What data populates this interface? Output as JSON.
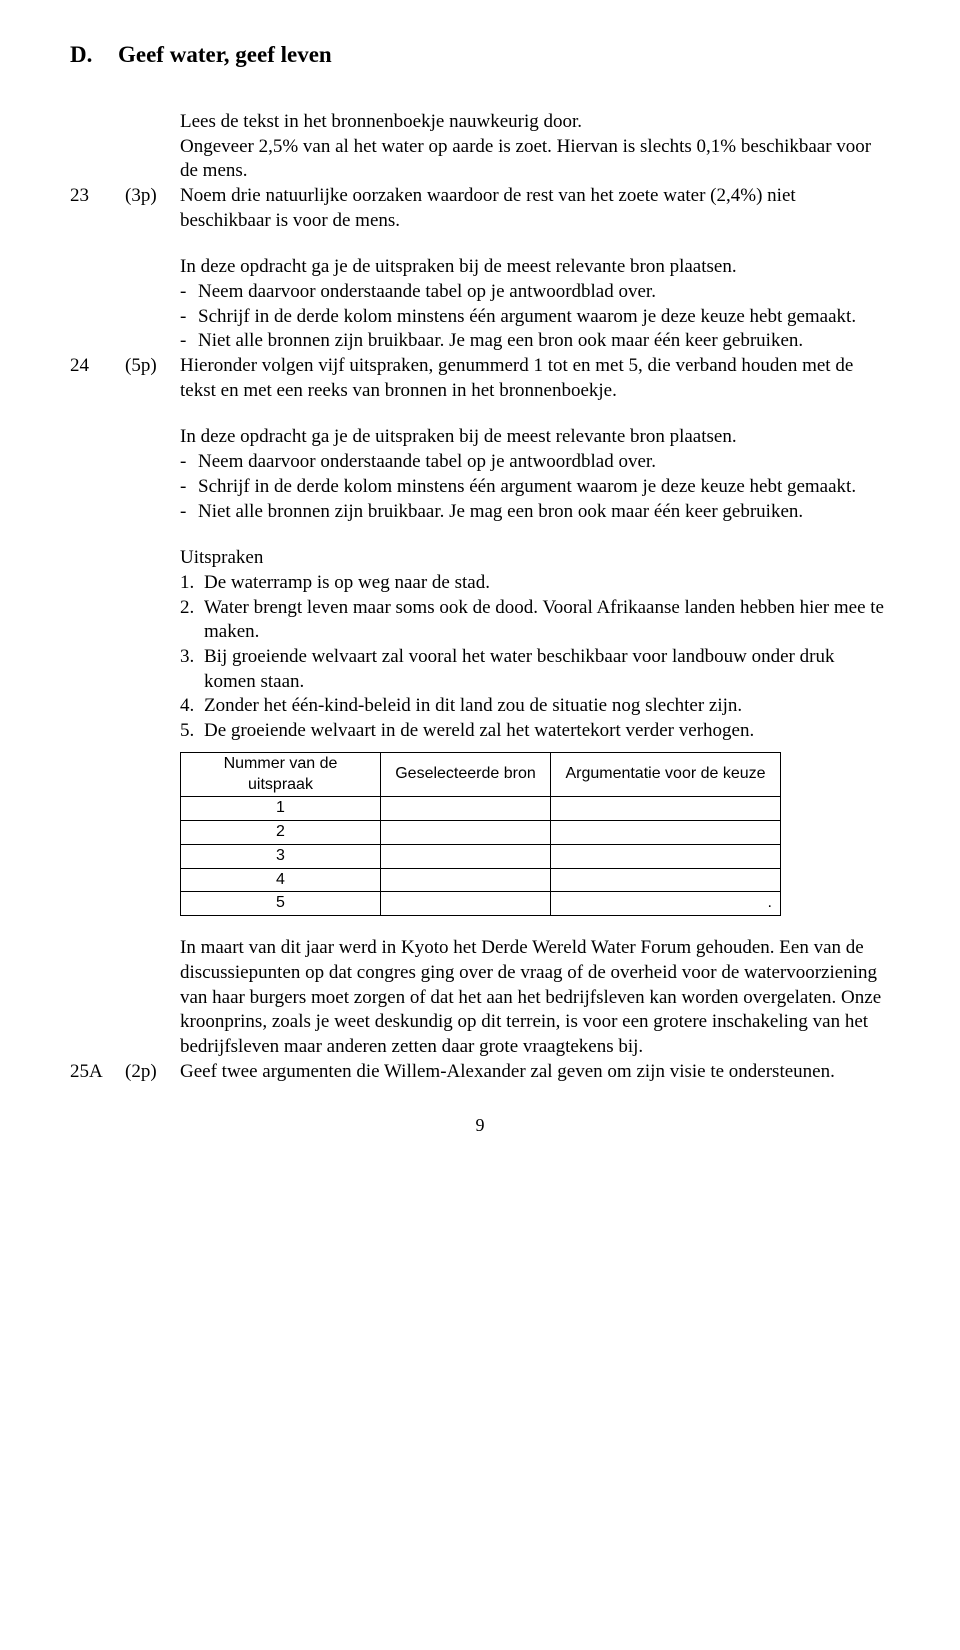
{
  "section": {
    "letter": "D.",
    "title": "Geef water, geef leven"
  },
  "intro": {
    "line1": "Lees de tekst in het bronnenboekje nauwkeurig door.",
    "line2": "Ongeveer 2,5% van al het water op aarde is zoet. Hiervan is slechts 0,1% beschikbaar voor de mens."
  },
  "q23": {
    "num": "23",
    "pts": "(3p)",
    "text": "Noem drie natuurlijke oorzaken waardoor de rest van het zoete water (2,4%) niet beschikbaar is voor de mens.",
    "instr": "In deze opdracht ga je de uitspraken bij de meest relevante bron plaatsen.",
    "b1": "Neem daarvoor onderstaande tabel op je antwoordblad over.",
    "b2": "Schrijf in de derde kolom minstens één argument waarom je deze keuze hebt gemaakt.",
    "b3": "Niet alle bronnen zijn bruikbaar. Je mag een bron ook maar één keer gebruiken."
  },
  "q24": {
    "num": "24",
    "pts": "(5p)",
    "text": "Hieronder volgen vijf uitspraken, genummerd 1 tot en met 5, die verband houden met de tekst en met een reeks van bronnen in het bronnenboekje.",
    "instr": "In deze opdracht ga je de uitspraken bij de meest relevante bron plaatsen.",
    "b1": "Neem daarvoor onderstaande tabel op je antwoordblad over.",
    "b2": "Schrijf in de derde kolom minstens één argument waarom je deze keuze hebt gemaakt.",
    "b3": "Niet alle bronnen zijn bruikbaar. Je mag een bron ook maar één keer gebruiken.",
    "uitspraken_label": "Uitspraken",
    "u1": "De waterramp is op weg naar de stad.",
    "u2": "Water brengt leven maar soms ook de dood. Vooral Afrikaanse landen hebben hier mee te maken.",
    "u3": "Bij groeiende welvaart zal vooral het water beschikbaar voor landbouw onder druk komen staan.",
    "u4": "Zonder het één-kind-beleid in dit land zou de situatie nog slechter zijn.",
    "u5": "De groeiende welvaart in de wereld zal het watertekort verder verhogen."
  },
  "table": {
    "h1": "Nummer van de uitspraak",
    "h2": "Geselecteerde bron",
    "h3": "Argumentatie voor de keuze",
    "r1": "1",
    "r2": "2",
    "r3": "3",
    "r4": "4",
    "r5": "5",
    "dot": "."
  },
  "q25": {
    "para": "In maart van dit jaar werd in Kyoto het Derde Wereld Water Forum gehouden. Een van de discussiepunten op dat congres ging over de vraag of de overheid voor de watervoorziening van haar burgers moet zorgen of dat het aan het bedrijfsleven kan worden overgelaten. Onze kroonprins, zoals je weet deskundig op dit terrein, is voor een grotere inschakeling van het bedrijfsleven maar anderen zetten daar grote vraagtekens bij.",
    "num": "25A",
    "pts": "(2p)",
    "text": "Geef twee argumenten die Willem-Alexander zal geven om zijn visie te ondersteunen."
  },
  "page": "9"
}
